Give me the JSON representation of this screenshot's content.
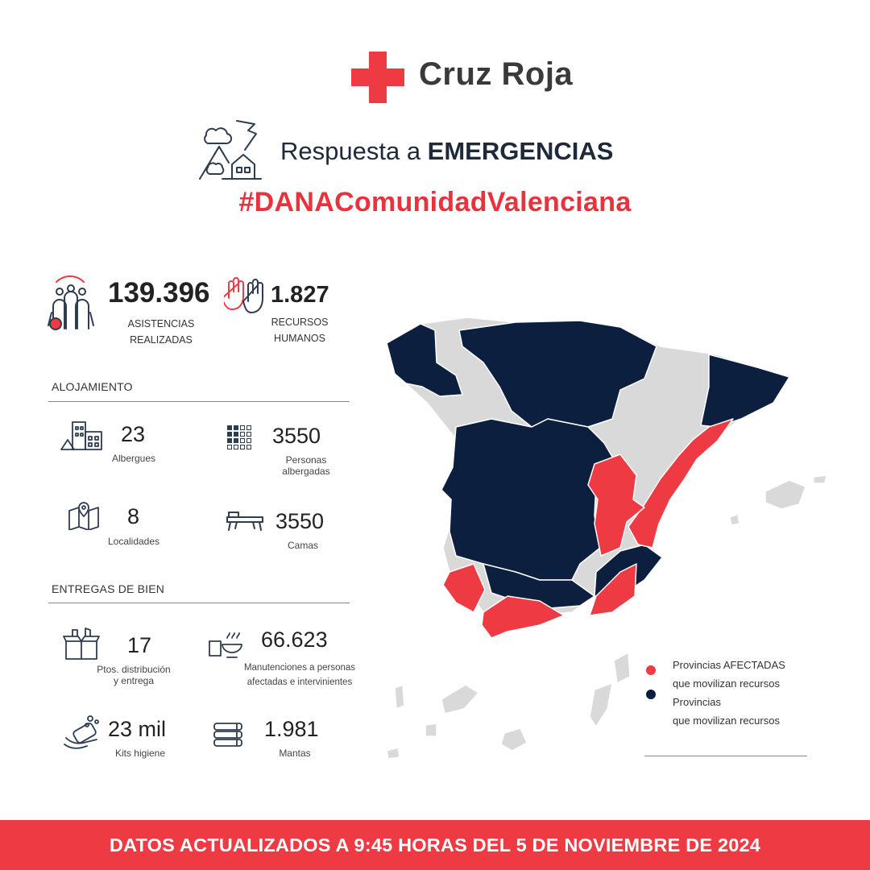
{
  "brand": "Cruz Roja",
  "header": {
    "title_prefix": "Respuesta a ",
    "title_strong": "EMERGENCIAS",
    "hashtag": "#DANAComunidadValenciana"
  },
  "top_stats": {
    "asistencias": {
      "value": "139.396",
      "line1": "ASISTENCIAS",
      "line2": "REALIZADAS",
      "icon": "people-group-icon"
    },
    "recursos": {
      "value": "1.827",
      "line1": "RECURSOS",
      "line2": "HUMANOS",
      "icon": "raised-hands-icon"
    }
  },
  "alojamiento": {
    "title": "ALOJAMIENTO",
    "albergues": {
      "value": "23",
      "label": "Albergues",
      "icon": "shelter-buildings-icon"
    },
    "personas": {
      "value": "3550",
      "line1": "Personas",
      "line2": "albergadas",
      "icon": "grid-people-icon"
    },
    "localidades": {
      "value": "8",
      "label": "Localidades",
      "icon": "map-pin-icon"
    },
    "camas": {
      "value": "3550",
      "label": "Camas",
      "icon": "bed-icon"
    }
  },
  "entregas": {
    "title": "ENTREGAS DE BIEN",
    "puntos": {
      "value": "17",
      "line1": "Ptos. distribución",
      "line2": "y entrega",
      "icon": "box-icon"
    },
    "manutenciones": {
      "value": "66.623",
      "line1": "Manutenciones a personas",
      "line2": "afectadas e intervinientes",
      "icon": "food-bowl-icon"
    },
    "kits": {
      "value": "23 mil",
      "label": "Kits higiene",
      "icon": "soap-icon"
    },
    "mantas": {
      "value": "1.981",
      "label": "Mantas",
      "icon": "blankets-icon"
    }
  },
  "legend": {
    "affected": {
      "line1": "Provincias AFECTADAS",
      "line2": "que movilizan recursos",
      "color": "#ee3a43"
    },
    "mobilizing": {
      "line1": "Provincias",
      "line2": "que movilizan recursos",
      "color": "#0c1f3f"
    }
  },
  "map_colors": {
    "affected": "#ee3a43",
    "mobilizing": "#0c1f3f",
    "other": "#d9d9d9"
  },
  "footer": "DATOS ACTUALIZADOS A 9:45 HORAS DEL 5 DE NOVIEMBRE DE 2024"
}
